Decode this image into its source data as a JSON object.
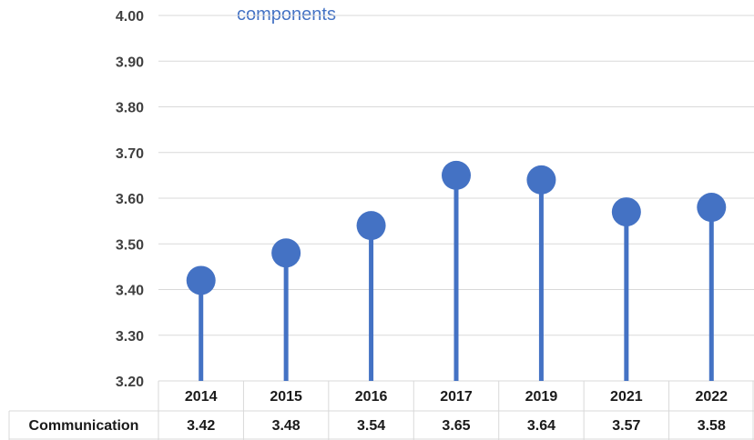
{
  "chart_data": {
    "type": "lollipop",
    "title_fragment": "components",
    "categories": [
      "2014",
      "2015",
      "2016",
      "2017",
      "2019",
      "2021",
      "2022"
    ],
    "series": [
      {
        "name": "Communication",
        "values": [
          3.42,
          3.48,
          3.54,
          3.65,
          3.64,
          3.57,
          3.58
        ]
      }
    ],
    "table_values": [
      "3.42",
      "3.48",
      "3.54",
      "3.65",
      "3.64",
      "3.57",
      "3.58"
    ],
    "ylim": [
      3.2,
      4.0
    ],
    "yticks": [
      "3.20",
      "3.30",
      "3.40",
      "3.50",
      "3.60",
      "3.70",
      "3.80",
      "3.90",
      "4.00"
    ],
    "grid": true,
    "data_table": true,
    "colors": {
      "marker": "#4472c4",
      "title": "#4472c4",
      "grid": "#d9d9d9",
      "text": "#1a1a1a"
    }
  }
}
